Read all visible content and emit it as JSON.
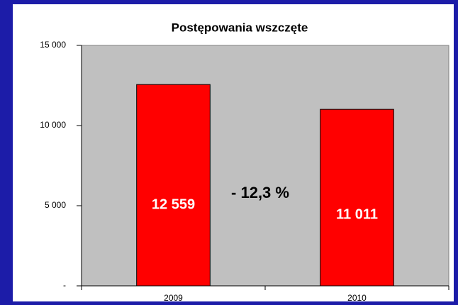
{
  "chart_data": {
    "type": "bar",
    "title": "Postępowania wszczęte",
    "categories": [
      "2009",
      "2010"
    ],
    "values": [
      12559,
      11011
    ],
    "value_labels": [
      "12 559",
      "11 011"
    ],
    "color": "#ff0000",
    "ylim": [
      0,
      15000
    ],
    "yticks": [
      {
        "value": 0,
        "label": "-"
      },
      {
        "value": 5000,
        "label": "5 000"
      },
      {
        "value": 10000,
        "label": "10 000"
      },
      {
        "value": 15000,
        "label": "15 000"
      }
    ],
    "annotation": "- 12,3 %"
  }
}
